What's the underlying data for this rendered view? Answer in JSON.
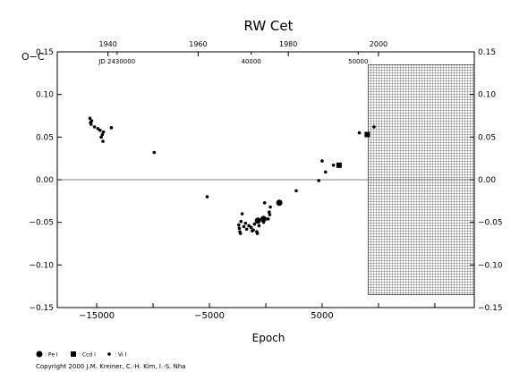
{
  "chart_data": {
    "type": "scatter",
    "title": "RW Cet",
    "xlabel": "Epoch",
    "ylabel": "O−C",
    "xlim": [
      -18500,
      18500
    ],
    "ylim": [
      -0.15,
      0.15
    ],
    "x_ticks": [
      "-15000",
      "-10000",
      "-5000",
      "0",
      "5000",
      "10000",
      "15000"
    ],
    "x_tick_labels": [
      "−15000",
      "",
      "−5000",
      "",
      "5000",
      "",
      ""
    ],
    "y_ticks": [
      -0.15,
      -0.1,
      -0.05,
      0.0,
      0.05,
      0.1,
      0.15
    ],
    "y_tick_labels": [
      "−0.15",
      "−0.10",
      "−0.05",
      "0.00",
      "0.05",
      "0.10",
      "0.15"
    ],
    "top_axis_years": [
      {
        "label": "1940",
        "epoch": -14000
      },
      {
        "label": "1960",
        "epoch": -6000
      },
      {
        "label": "1980",
        "epoch": 2000
      },
      {
        "label": "2000",
        "epoch": 10000
      }
    ],
    "jd_axis": [
      {
        "label": "JD 2430000",
        "epoch": -13200
      },
      {
        "label": "40000",
        "epoch": -1300
      },
      {
        "label": "50000",
        "epoch": 8200
      }
    ],
    "hatched_region_epoch": [
      9100,
      18500
    ],
    "zero_line": 0.0,
    "grid": false,
    "series": [
      {
        "name": "Pe I",
        "marker": "large-dot",
        "points": [
          [
            -200,
            -0.046
          ],
          [
            1200,
            -0.027
          ],
          [
            -700,
            -0.048
          ]
        ]
      },
      {
        "name": "Ccd I",
        "marker": "square",
        "points": [
          [
            6500,
            0.017
          ],
          [
            9000,
            0.053
          ]
        ]
      },
      {
        "name": "Vi I",
        "marker": "small-dot",
        "points": [
          [
            -15600,
            0.072
          ],
          [
            -15550,
            0.067
          ],
          [
            -15500,
            0.065
          ],
          [
            -15450,
            0.069
          ],
          [
            -15200,
            0.062
          ],
          [
            -14900,
            0.06
          ],
          [
            -14700,
            0.058
          ],
          [
            -14600,
            0.05
          ],
          [
            -14500,
            0.053
          ],
          [
            -14450,
            0.045
          ],
          [
            -14400,
            0.056
          ],
          [
            -13700,
            0.061
          ],
          [
            -9900,
            0.032
          ],
          [
            -5200,
            -0.02
          ],
          [
            -2400,
            -0.053
          ],
          [
            -2350,
            -0.057
          ],
          [
            -2300,
            -0.061
          ],
          [
            -2250,
            -0.063
          ],
          [
            -2200,
            -0.049
          ],
          [
            -2100,
            -0.04
          ],
          [
            -1950,
            -0.055
          ],
          [
            -1800,
            -0.051
          ],
          [
            -1700,
            -0.058
          ],
          [
            -1500,
            -0.054
          ],
          [
            -1300,
            -0.056
          ],
          [
            -1200,
            -0.06
          ],
          [
            -1100,
            -0.059
          ],
          [
            -1000,
            -0.052
          ],
          [
            -800,
            -0.061
          ],
          [
            -750,
            -0.063
          ],
          [
            -600,
            -0.054
          ],
          [
            -300,
            -0.046
          ],
          [
            -200,
            -0.05
          ],
          [
            -100,
            -0.027
          ],
          [
            200,
            -0.046
          ],
          [
            300,
            -0.038
          ],
          [
            350,
            -0.041
          ],
          [
            400,
            -0.032
          ],
          [
            2700,
            -0.013
          ],
          [
            4700,
            -0.001
          ],
          [
            5000,
            0.022
          ],
          [
            5300,
            0.009
          ],
          [
            6000,
            0.017
          ],
          [
            8300,
            0.055
          ],
          [
            9600,
            0.062
          ]
        ]
      }
    ],
    "legend": {
      "placement": "bottom-left",
      "items": [
        {
          "marker": "large-dot",
          "label": ": Pe I"
        },
        {
          "marker": "square",
          "label": ": Ccd I"
        },
        {
          "marker": "small-dot",
          "label": ": Vi I"
        }
      ]
    }
  },
  "copyright": "Copyright 2000 J.M. Kreiner, C.-H. Kim, I.-S. Nha"
}
